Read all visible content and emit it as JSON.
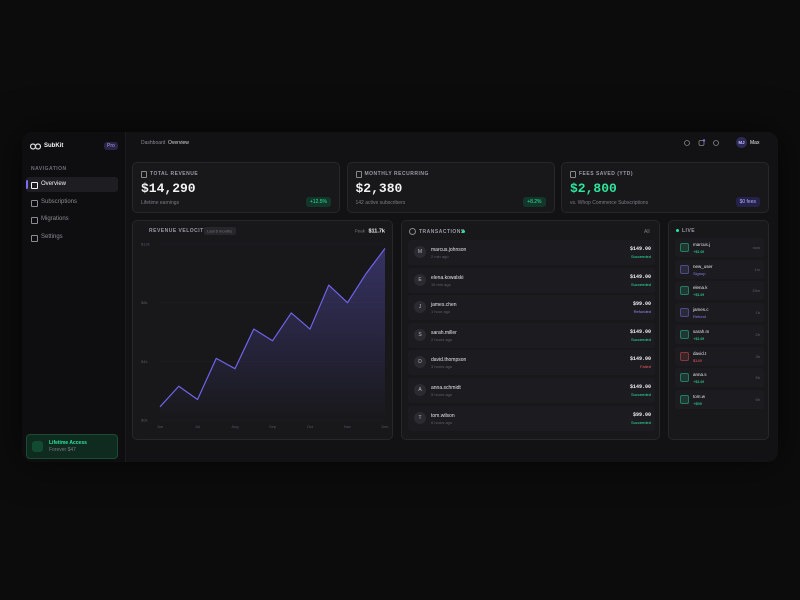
{
  "sidebar": {
    "brand": "SubKit",
    "badge": "Pro",
    "section": "NAVIGATION",
    "nav": [
      "Overview",
      "Subscriptions",
      "Migrations",
      "Settings"
    ],
    "active": 0,
    "promo": {
      "title": "Lifetime Access",
      "subtitle": "Forever $47"
    }
  },
  "topbar": {
    "breadcrumb": [
      "Dashboard",
      "Overview"
    ],
    "user": {
      "initials": "MJ",
      "name": "Max"
    }
  },
  "stats": [
    {
      "label": "TOTAL REVENUE",
      "value": "$14,290",
      "note": "Lifetime earnings",
      "badge": "+12.5%",
      "value_color": "#f2f2f5"
    },
    {
      "label": "MONTHLY RECURRING",
      "value": "$2,380",
      "note": "142 active subscribers",
      "badge": "+8.2%",
      "value_color": "#f2f2f5"
    },
    {
      "label": "FEES SAVED (YTD)",
      "value": "$2,800",
      "note": "vs. Whop Commerce Subscriptions",
      "badge": "$0 fees",
      "value_color": "#2ee59d"
    }
  ],
  "chart_data": {
    "type": "line",
    "title": "REVENUE VELOCITY",
    "badge": "Last 6 months",
    "peak_label": "Peak",
    "peak": "$11.7k",
    "categories": [
      "Jun",
      null,
      "Jul",
      null,
      "Aug",
      null,
      "Sep",
      null,
      "Oct",
      null,
      "Nov",
      null,
      "Dec"
    ],
    "values": [
      0.9,
      2.3,
      1.4,
      4.2,
      3.5,
      6.2,
      5.4,
      7.3,
      6.2,
      9.2,
      8.0,
      10.0,
      11.7
    ],
    "ylim": [
      0,
      12
    ],
    "yticks": [
      {
        "value": 0,
        "label": "$0k"
      },
      {
        "value": 4,
        "label": "$4k"
      },
      {
        "value": 8,
        "label": "$8k"
      },
      {
        "value": 12,
        "label": "$12k"
      }
    ],
    "color": "#6f63ea"
  },
  "transactions": {
    "title": "TRANSACTIONS",
    "filter": "All",
    "rows": [
      {
        "initial": "M",
        "name": "marcus.johnson",
        "time": "2 min ago",
        "amount": "$149.00",
        "status": "Succeeded",
        "color": "#2ee59d"
      },
      {
        "initial": "E",
        "name": "elena.kowalski",
        "time": "15 min ago",
        "amount": "$149.00",
        "status": "Succeeded",
        "color": "#2ee59d"
      },
      {
        "initial": "J",
        "name": "james.chen",
        "time": "1 hour ago",
        "amount": "$99.00",
        "status": "Refunded",
        "color": "#9d8cf5"
      },
      {
        "initial": "S",
        "name": "sarah.miller",
        "time": "2 hours ago",
        "amount": "$149.00",
        "status": "Succeeded",
        "color": "#2ee59d"
      },
      {
        "initial": "D",
        "name": "david.thompson",
        "time": "3 hours ago",
        "amount": "$149.00",
        "status": "Failed",
        "color": "#f05a5a"
      },
      {
        "initial": "A",
        "name": "anna.schmidt",
        "time": "5 hours ago",
        "amount": "$149.00",
        "status": "Succeeded",
        "color": "#2ee59d"
      },
      {
        "initial": "T",
        "name": "tom.wilson",
        "time": "6 hours ago",
        "amount": "$99.00",
        "status": "Succeeded",
        "color": "#2ee59d"
      }
    ]
  },
  "live": {
    "title": "LIVE",
    "items": [
      {
        "name": "marcus.j",
        "amount": "+$149",
        "time": "now",
        "color": "#2ee59d"
      },
      {
        "name": "new_user",
        "amount": "Signup",
        "time": "1m",
        "color": "#8a7cf0"
      },
      {
        "name": "elena.k",
        "amount": "+$149",
        "time": "15m",
        "color": "#2ee59d"
      },
      {
        "name": "james.c",
        "amount": "Refund",
        "time": "1h",
        "color": "#8a7cf0"
      },
      {
        "name": "sarah.m",
        "amount": "+$149",
        "time": "2h",
        "color": "#2ee59d"
      },
      {
        "name": "david.t",
        "amount": "$149",
        "time": "3h",
        "color": "#f05a5a"
      },
      {
        "name": "anna.s",
        "amount": "+$149",
        "time": "5h",
        "color": "#2ee59d"
      },
      {
        "name": "tom.w",
        "amount": "+$99",
        "time": "6h",
        "color": "#2ee59d"
      }
    ]
  }
}
